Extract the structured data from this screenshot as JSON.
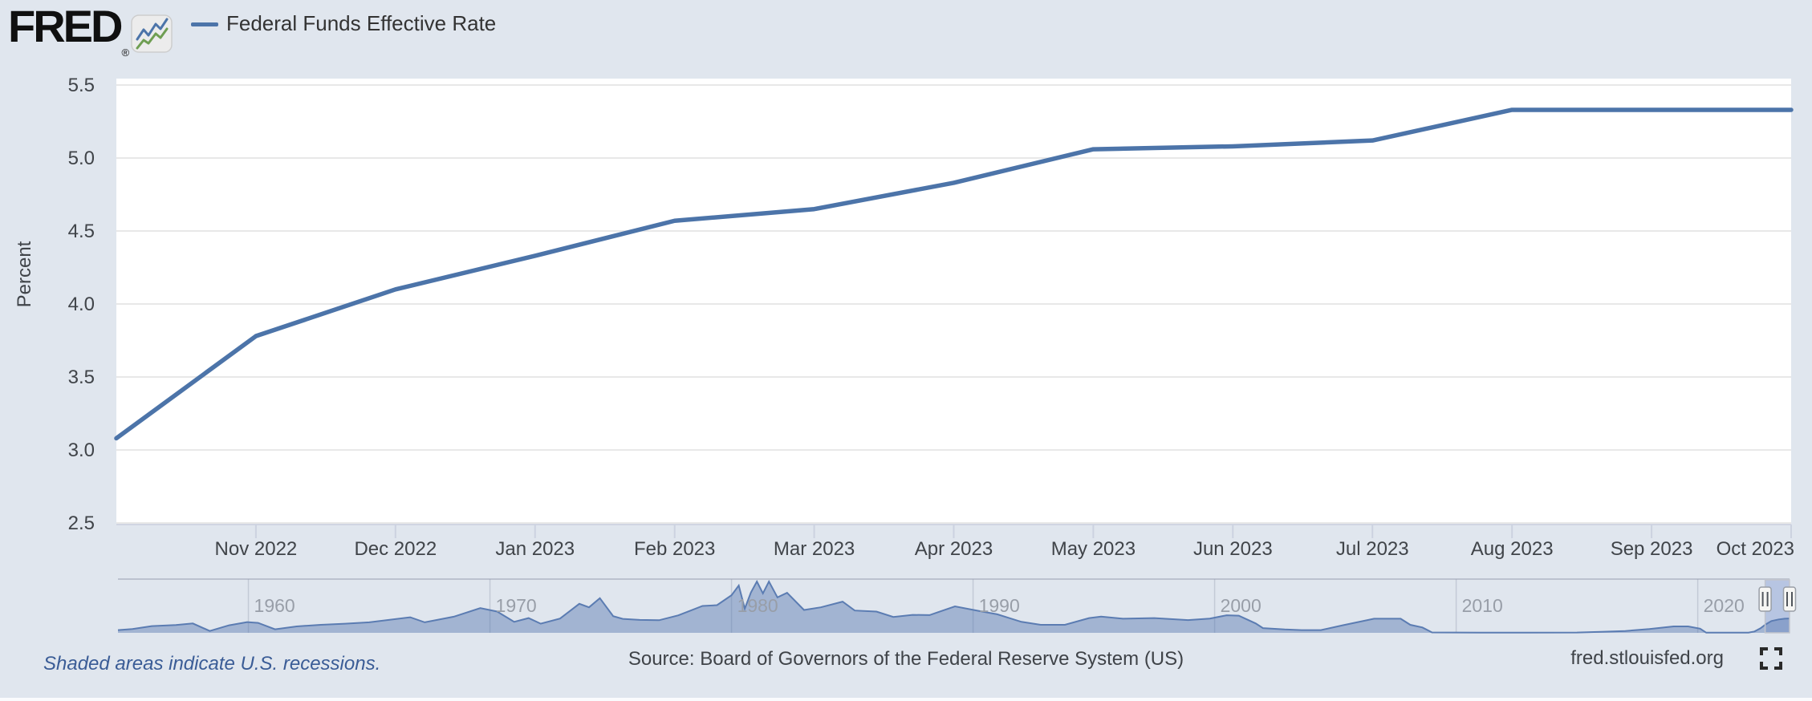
{
  "header": {
    "logo_text": "FRED",
    "registered_mark": "®",
    "legend": {
      "series_label": "Federal Funds Effective Rate",
      "line_color": "#4c74a9"
    }
  },
  "chart_data": [
    {
      "type": "line",
      "name": "federal-funds-effective-rate-main",
      "title": "Federal Funds Effective Rate",
      "ylabel": "Percent",
      "xlabel": "",
      "x": [
        "Oct 2022",
        "Nov 2022",
        "Dec 2022",
        "Jan 2023",
        "Feb 2023",
        "Mar 2023",
        "Apr 2023",
        "May 2023",
        "Jun 2023",
        "Jul 2023",
        "Aug 2023",
        "Sep 2023",
        "Oct 2023"
      ],
      "values": [
        3.08,
        3.78,
        4.1,
        4.33,
        4.57,
        4.65,
        4.83,
        5.06,
        5.08,
        5.12,
        5.33,
        5.33,
        5.33
      ],
      "x_tick_labels": [
        "Nov 2022",
        "Dec 2022",
        "Jan 2023",
        "Feb 2023",
        "Mar 2023",
        "Apr 2023",
        "May 2023",
        "Jun 2023",
        "Jul 2023",
        "Aug 2023",
        "Sep 2023",
        "Oct 2023"
      ],
      "y_ticks": [
        2.5,
        3.0,
        3.5,
        4.0,
        4.5,
        5.0,
        5.5
      ],
      "y_tick_labels": [
        "2.5",
        "3.0",
        "3.5",
        "4.0",
        "4.5",
        "5.0",
        "5.5"
      ],
      "ylim": [
        2.49,
        5.54
      ],
      "grid": true,
      "legend_position": "top-left",
      "line_color": "#4c74a9",
      "plot_bg": "#ffffff",
      "grid_color": "#e8e8e8"
    },
    {
      "type": "area",
      "name": "navigator-full-history",
      "x_tick_labels": [
        "1960",
        "1970",
        "1980",
        "1990",
        "2000",
        "2010",
        "2020"
      ],
      "x_ticks": [
        1960,
        1970,
        1980,
        1990,
        2000,
        2010,
        2020
      ],
      "x_range": [
        1954.6,
        2023.8
      ],
      "ylim": [
        0,
        20
      ],
      "selected_range": [
        2022.79,
        2023.8
      ],
      "line_color": "#5b7cb2",
      "fill_color": "rgba(77,112,171,0.42)",
      "selection_color": "#b7c5e2",
      "points": [
        [
          1954.6,
          1.0
        ],
        [
          1955.2,
          1.4
        ],
        [
          1956.0,
          2.5
        ],
        [
          1957.0,
          2.9
        ],
        [
          1957.7,
          3.5
        ],
        [
          1958.4,
          0.7
        ],
        [
          1959.2,
          2.8
        ],
        [
          1959.95,
          4.0
        ],
        [
          1960.4,
          3.7
        ],
        [
          1961.1,
          1.3
        ],
        [
          1962.0,
          2.4
        ],
        [
          1963.0,
          3.0
        ],
        [
          1964.0,
          3.4
        ],
        [
          1965.0,
          3.9
        ],
        [
          1966.7,
          5.8
        ],
        [
          1967.3,
          3.9
        ],
        [
          1968.5,
          6.0
        ],
        [
          1969.6,
          9.2
        ],
        [
          1970.3,
          7.9
        ],
        [
          1971.0,
          4.1
        ],
        [
          1971.6,
          5.5
        ],
        [
          1972.1,
          3.4
        ],
        [
          1972.9,
          5.3
        ],
        [
          1973.7,
          10.8
        ],
        [
          1974.1,
          9.5
        ],
        [
          1974.55,
          12.9
        ],
        [
          1975.1,
          6.2
        ],
        [
          1975.5,
          5.2
        ],
        [
          1976.2,
          4.8
        ],
        [
          1977.0,
          4.7
        ],
        [
          1977.8,
          6.5
        ],
        [
          1978.8,
          10.0
        ],
        [
          1979.4,
          10.3
        ],
        [
          1980.0,
          14.0
        ],
        [
          1980.3,
          17.6
        ],
        [
          1980.55,
          9.0
        ],
        [
          1980.8,
          15.0
        ],
        [
          1981.05,
          19.1
        ],
        [
          1981.3,
          14.7
        ],
        [
          1981.55,
          19.1
        ],
        [
          1981.9,
          13.2
        ],
        [
          1982.3,
          14.9
        ],
        [
          1983.0,
          8.5
        ],
        [
          1983.7,
          9.5
        ],
        [
          1984.6,
          11.6
        ],
        [
          1985.1,
          8.3
        ],
        [
          1986.0,
          7.9
        ],
        [
          1986.7,
          5.9
        ],
        [
          1987.5,
          6.7
        ],
        [
          1988.2,
          6.6
        ],
        [
          1989.25,
          9.85
        ],
        [
          1990.2,
          8.2
        ],
        [
          1991.0,
          6.9
        ],
        [
          1992.0,
          4.1
        ],
        [
          1992.8,
          3.0
        ],
        [
          1993.8,
          3.0
        ],
        [
          1994.8,
          5.5
        ],
        [
          1995.3,
          6.05
        ],
        [
          1996.2,
          5.25
        ],
        [
          1997.5,
          5.5
        ],
        [
          1998.9,
          4.75
        ],
        [
          1999.8,
          5.3
        ],
        [
          2000.5,
          6.54
        ],
        [
          2001.0,
          6.4
        ],
        [
          2001.7,
          3.5
        ],
        [
          2002.0,
          1.75
        ],
        [
          2002.9,
          1.25
        ],
        [
          2003.6,
          1.0
        ],
        [
          2004.4,
          1.0
        ],
        [
          2005.3,
          2.8
        ],
        [
          2006.6,
          5.25
        ],
        [
          2007.7,
          5.25
        ],
        [
          2008.1,
          3.0
        ],
        [
          2008.6,
          2.0
        ],
        [
          2009.0,
          0.16
        ],
        [
          2011.0,
          0.1
        ],
        [
          2013.0,
          0.1
        ],
        [
          2015.0,
          0.11
        ],
        [
          2016.0,
          0.38
        ],
        [
          2017.0,
          0.7
        ],
        [
          2018.0,
          1.4
        ],
        [
          2019.0,
          2.4
        ],
        [
          2019.6,
          2.4
        ],
        [
          2020.1,
          1.55
        ],
        [
          2020.35,
          0.05
        ],
        [
          2021.5,
          0.07
        ],
        [
          2022.1,
          0.1
        ],
        [
          2022.35,
          0.5
        ],
        [
          2022.6,
          1.7
        ],
        [
          2022.8,
          3.08
        ],
        [
          2023.05,
          4.4
        ],
        [
          2023.35,
          5.0
        ],
        [
          2023.6,
          5.26
        ],
        [
          2023.8,
          5.33
        ]
      ]
    }
  ],
  "footer": {
    "recessions_note": "Shaded areas indicate U.S. recessions.",
    "source": "Source: Board of Governors of the Federal Reserve System (US)",
    "site_url": "fred.stlouisfed.org",
    "fullscreen_icon": "fullscreen-expand-icon"
  },
  "colors": {
    "page_bg": "#e0e6ee",
    "axis_label": "#404449",
    "axis_line": "#d0d5e2",
    "tick_mark": "#ccd2e0",
    "decade_label": "#989ea8",
    "navigator_border": "#bcc2cf",
    "handle_fill": "#f6f6f4",
    "handle_border": "#999ea6",
    "recession_note": "#3a5c96",
    "footer_text": "#3f4348"
  }
}
